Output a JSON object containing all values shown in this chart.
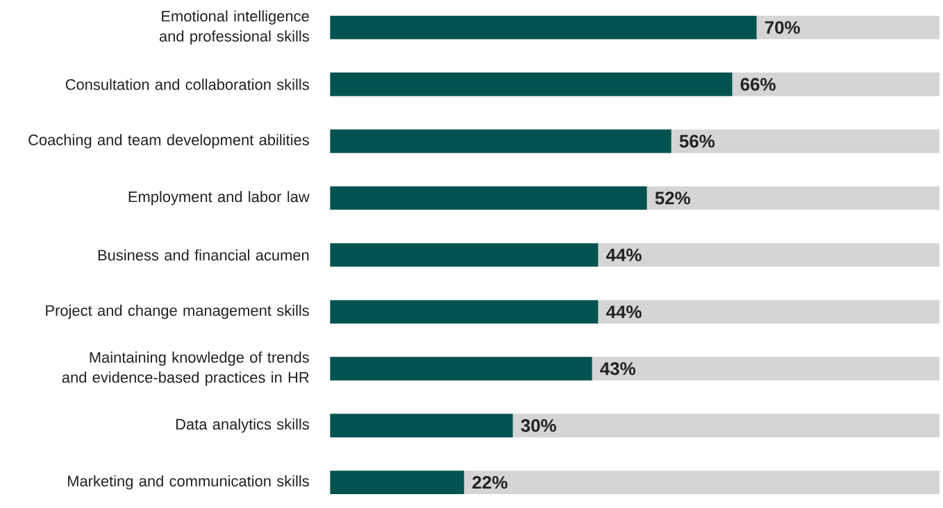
{
  "chart_data": {
    "type": "bar",
    "orientation": "horizontal",
    "stacked": true,
    "xlim": [
      0,
      100
    ],
    "categories": [
      "Emotional intelligence and professional skills",
      "Consultation and collaboration skills",
      "Coaching and team development abilities",
      "Employment and labor law",
      "Business and financial acumen",
      "Project and change management skills",
      "Maintaining knowledge of trends and evidence-based practices in HR",
      "Data analytics skills",
      "Marketing and communication skills"
    ],
    "series": [
      {
        "color": "#02534f",
        "values": [
          70,
          66,
          56,
          52,
          44,
          44,
          43,
          30,
          22
        ],
        "value_labels": [
          "70%",
          "66%",
          "56%",
          "52%",
          "44%",
          "44%",
          "43%",
          "30%",
          "22%"
        ]
      },
      {
        "color": "#d5d5d7",
        "values": [
          30,
          34,
          44,
          48,
          56,
          56,
          57,
          70,
          78
        ]
      }
    ]
  }
}
